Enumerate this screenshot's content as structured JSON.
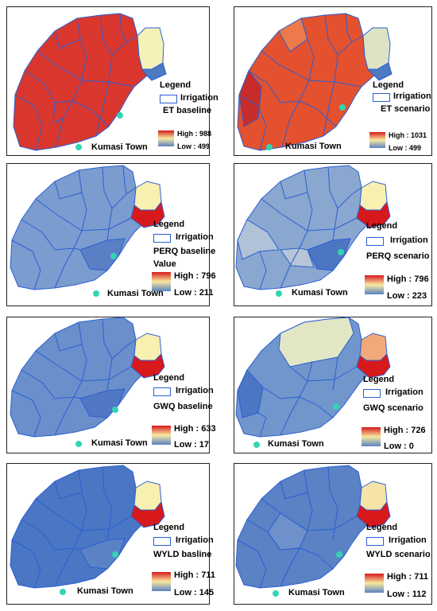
{
  "legend_title": "Legend",
  "irrigation_label": "Irrigation",
  "town_label": "Kumasi Town",
  "colors": {
    "boundary": "#2b5fd4",
    "irrigation_fill": "#d7191c",
    "high": "#d7191c",
    "mid": "#f7e9a0",
    "low": "#5a82c2",
    "town": "#33d4b4"
  },
  "panels": [
    {
      "layer": "ET baseline",
      "layer_extra": "",
      "high": "High : 988",
      "low": "Low : 499",
      "main_fill": "#d9372e",
      "irrigation_fill": "#f5f2b8",
      "east_fill": "#4d79c0"
    },
    {
      "layer": "ET scenario",
      "layer_extra": "",
      "high": "High : 1031",
      "low": "Low : 499",
      "main_fill": "#e3512f",
      "irrigation_fill": "#dde3c4",
      "east_fill": "#4d79c0"
    },
    {
      "layer": "PERQ baseline",
      "layer_extra": "Value",
      "high": "High : 796",
      "low": "Low : 211",
      "main_fill": "#7b9ccf",
      "irrigation_fill": "#f8f0b0",
      "east_fill": "#d7191c"
    },
    {
      "layer": "PERQ scenario",
      "layer_extra": "",
      "high": "High : 796",
      "low": "Low : 223",
      "main_fill": "#8aa7cf",
      "irrigation_fill": "#f8f0b0",
      "east_fill": "#d7191c"
    },
    {
      "layer": "GWQ baseline",
      "layer_extra": "",
      "high": "High : 633",
      "low": "Low : 17",
      "main_fill": "#6a8fcb",
      "irrigation_fill": "#f8f0b0",
      "east_fill": "#d7191c"
    },
    {
      "layer": "GWQ scenario",
      "layer_extra": "",
      "high": "High : 726",
      "low": "Low : 0",
      "main_fill": "#7196cc",
      "irrigation_fill": "#f2a878",
      "east_fill": "#d7191c"
    },
    {
      "layer": "WYLD basline",
      "layer_extra": "",
      "high": "High : 711",
      "low": "Low : 145",
      "main_fill": "#4a76c3",
      "irrigation_fill": "#f8f0b0",
      "east_fill": "#d7191c"
    },
    {
      "layer": "WYLD scenario",
      "layer_extra": "",
      "high": "High : 711",
      "low": "Low : 112",
      "main_fill": "#5a82c4",
      "irrigation_fill": "#f5e3a8",
      "east_fill": "#d7191c"
    }
  ]
}
